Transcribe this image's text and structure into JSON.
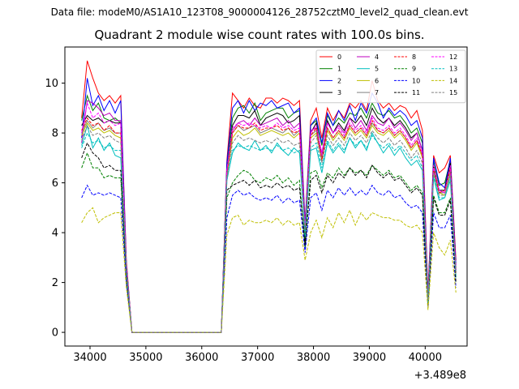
{
  "figure": {
    "suptitle": "Data file: modeM0/AS1A10_123T08_9000004126_28752cztM0_level2_quad_clean.evt",
    "title": "Quadrant 2 module wise count rates with 100.0s bins."
  },
  "chart_data": {
    "type": "line",
    "title": "Quadrant 2 module wise count rates with 100.0s bins.",
    "xlabel": "",
    "ylabel": "",
    "x_offset_label": "+3.489e8",
    "x_offset": 348900000,
    "xlim": [
      33550,
      40750
    ],
    "ylim": [
      -0.55,
      11.45
    ],
    "xticks": [
      34000,
      35000,
      36000,
      37000,
      38000,
      39000,
      40000
    ],
    "yticks": [
      0,
      2,
      4,
      6,
      8,
      10
    ],
    "grid": false,
    "legend_placement": "top-right",
    "legend_columns": 4,
    "x": [
      33850,
      33950,
      34050,
      34150,
      34250,
      34350,
      34450,
      34550,
      34650,
      34750,
      34850,
      34950,
      35050,
      35150,
      35250,
      35350,
      35450,
      35550,
      35650,
      35750,
      35850,
      35950,
      36050,
      36150,
      36250,
      36350,
      36450,
      36550,
      36650,
      36750,
      36850,
      36950,
      37050,
      37150,
      37250,
      37350,
      37450,
      37550,
      37650,
      37750,
      37850,
      37950,
      38050,
      38150,
      38250,
      38350,
      38450,
      38550,
      38650,
      38750,
      38850,
      38950,
      39050,
      39150,
      39250,
      39350,
      39450,
      39550,
      39650,
      39750,
      39850,
      39950,
      40050,
      40150,
      40250,
      40350,
      40450,
      40550
    ],
    "series": [
      {
        "name": "0",
        "color": "#ff0000",
        "dash": "solid",
        "values": [
          8.6,
          10.9,
          10.2,
          9.6,
          9.3,
          9.5,
          9.2,
          9.5,
          2.9,
          0,
          0,
          0,
          0,
          0,
          0,
          0,
          0,
          0,
          0,
          0,
          0,
          0,
          0,
          0,
          0,
          0,
          6.9,
          9.6,
          9.3,
          9.0,
          9.4,
          9.1,
          9.0,
          9.4,
          9.4,
          9.2,
          9.4,
          9.3,
          9.1,
          9.3,
          4.4,
          8.5,
          9.0,
          7.8,
          9.0,
          8.5,
          8.9,
          8.6,
          9.2,
          9.0,
          9.3,
          8.9,
          10.1,
          9.3,
          9.0,
          9.2,
          8.9,
          9.1,
          9.0,
          8.6,
          8.9,
          8.1,
          1.6,
          7.1,
          6.4,
          6.6,
          7.1,
          2.9
        ]
      },
      {
        "name": "1",
        "color": "#008000",
        "dash": "solid",
        "values": [
          8.5,
          9.5,
          8.9,
          9.2,
          8.6,
          8.5,
          8.6,
          8.4,
          2.7,
          0,
          0,
          0,
          0,
          0,
          0,
          0,
          0,
          0,
          0,
          0,
          0,
          0,
          0,
          0,
          0,
          0,
          6.7,
          8.6,
          9.0,
          9.1,
          8.8,
          9.2,
          8.5,
          8.8,
          8.9,
          9.0,
          9.0,
          8.6,
          8.8,
          8.9,
          4.2,
          8.3,
          8.5,
          7.5,
          8.7,
          8.3,
          8.6,
          8.4,
          8.8,
          8.7,
          9.0,
          8.6,
          9.2,
          8.8,
          8.7,
          8.9,
          8.6,
          8.7,
          8.4,
          8.0,
          8.2,
          7.6,
          1.4,
          6.9,
          5.9,
          6.0,
          6.9,
          2.6
        ]
      },
      {
        "name": "2",
        "color": "#0000ff",
        "dash": "solid",
        "values": [
          7.8,
          10.2,
          9.1,
          9.5,
          8.9,
          9.3,
          8.8,
          9.3,
          2.8,
          0,
          0,
          0,
          0,
          0,
          0,
          0,
          0,
          0,
          0,
          0,
          0,
          0,
          0,
          0,
          0,
          0,
          6.8,
          9.0,
          9.3,
          8.8,
          9.3,
          8.9,
          9.2,
          9.1,
          9.3,
          9.0,
          9.1,
          9.2,
          8.8,
          9.0,
          4.3,
          8.3,
          8.6,
          7.6,
          8.8,
          8.3,
          8.9,
          8.5,
          9.1,
          8.5,
          9.2,
          8.8,
          9.6,
          9.2,
          8.6,
          9.0,
          8.7,
          8.9,
          8.7,
          8.3,
          8.5,
          7.8,
          1.5,
          7.0,
          6.0,
          5.8,
          7.0,
          2.7
        ]
      },
      {
        "name": "3",
        "color": "#000000",
        "dash": "solid",
        "values": [
          8.3,
          8.7,
          8.5,
          8.6,
          8.4,
          8.5,
          8.4,
          8.4,
          2.7,
          0,
          0,
          0,
          0,
          0,
          0,
          0,
          0,
          0,
          0,
          0,
          0,
          0,
          0,
          0,
          0,
          0,
          6.4,
          8.3,
          8.7,
          8.7,
          8.6,
          8.9,
          8.3,
          8.6,
          8.7,
          8.8,
          8.7,
          8.4,
          8.5,
          8.7,
          3.4,
          8.0,
          8.4,
          7.0,
          8.5,
          8.0,
          8.4,
          8.1,
          8.6,
          8.4,
          8.7,
          8.3,
          9.0,
          8.6,
          8.4,
          8.6,
          8.3,
          8.5,
          8.2,
          7.8,
          8.0,
          7.3,
          1.3,
          6.7,
          5.7,
          5.7,
          6.8,
          2.5
        ]
      },
      {
        "name": "4",
        "color": "#bf00bf",
        "dash": "solid",
        "values": [
          7.6,
          9.3,
          9.2,
          9.0,
          8.7,
          8.8,
          8.5,
          8.5,
          2.6,
          0,
          0,
          0,
          0,
          0,
          0,
          0,
          0,
          0,
          0,
          0,
          0,
          0,
          0,
          0,
          0,
          0,
          6.5,
          8.1,
          8.4,
          8.5,
          8.3,
          8.6,
          8.3,
          8.4,
          8.5,
          8.6,
          8.3,
          8.5,
          8.2,
          8.4,
          4.1,
          8.1,
          8.2,
          7.2,
          8.4,
          8.0,
          8.3,
          8.0,
          8.6,
          8.2,
          8.5,
          8.1,
          8.7,
          8.4,
          8.3,
          8.6,
          8.2,
          8.4,
          8.1,
          7.7,
          8.0,
          7.3,
          1.4,
          6.6,
          5.7,
          5.6,
          6.6,
          2.4
        ]
      },
      {
        "name": "5",
        "color": "#00bfbf",
        "dash": "solid",
        "values": [
          7.5,
          8.3,
          7.4,
          7.8,
          7.3,
          7.6,
          7.1,
          7.0,
          2.4,
          0,
          0,
          0,
          0,
          0,
          0,
          0,
          0,
          0,
          0,
          0,
          0,
          0,
          0,
          0,
          0,
          0,
          6.1,
          7.2,
          7.6,
          7.4,
          7.3,
          7.7,
          7.3,
          7.5,
          7.2,
          7.6,
          7.3,
          7.1,
          7.4,
          7.2,
          3.8,
          7.3,
          7.4,
          6.4,
          7.6,
          7.2,
          7.5,
          7.2,
          7.8,
          7.4,
          7.7,
          7.3,
          8.0,
          7.6,
          7.2,
          7.5,
          7.1,
          7.4,
          7.0,
          6.7,
          6.9,
          6.5,
          1.2,
          6.2,
          5.3,
          5.4,
          6.1,
          2.2
        ]
      },
      {
        "name": "6",
        "color": "#bfbf00",
        "dash": "solid",
        "values": [
          7.9,
          8.4,
          8.1,
          8.2,
          8.0,
          8.1,
          7.9,
          7.8,
          2.6,
          0,
          0,
          0,
          0,
          0,
          0,
          0,
          0,
          0,
          0,
          0,
          0,
          0,
          0,
          0,
          0,
          0,
          6.3,
          7.8,
          8.1,
          7.9,
          8.0,
          8.2,
          7.9,
          8.0,
          8.1,
          8.0,
          7.9,
          8.0,
          7.8,
          8.0,
          4.0,
          7.8,
          8.0,
          6.9,
          8.1,
          7.7,
          8.0,
          7.7,
          8.2,
          7.9,
          8.1,
          7.8,
          8.3,
          8.0,
          7.9,
          8.1,
          7.8,
          8.0,
          7.7,
          7.3,
          7.6,
          7.0,
          1.3,
          6.4,
          5.6,
          5.5,
          6.4,
          2.4
        ]
      },
      {
        "name": "7",
        "color": "#808080",
        "dash": "solid",
        "values": [
          8.0,
          8.5,
          8.2,
          8.4,
          8.1,
          8.2,
          8.0,
          8.0,
          2.6,
          0,
          0,
          0,
          0,
          0,
          0,
          0,
          0,
          0,
          0,
          0,
          0,
          0,
          0,
          0,
          0,
          0,
          6.4,
          8.0,
          8.3,
          8.1,
          8.2,
          8.3,
          8.0,
          8.1,
          8.2,
          8.1,
          8.0,
          8.2,
          7.9,
          8.1,
          4.1,
          7.9,
          8.1,
          7.0,
          8.2,
          7.8,
          8.1,
          7.8,
          8.3,
          8.0,
          8.2,
          7.9,
          8.4,
          8.1,
          8.0,
          8.2,
          7.9,
          8.1,
          7.8,
          7.4,
          7.7,
          7.1,
          1.3,
          6.5,
          5.6,
          5.6,
          6.5,
          2.4
        ]
      },
      {
        "name": "8",
        "color": "#ff0000",
        "dash": "dashed",
        "values": [
          8.1,
          8.6,
          8.3,
          8.4,
          8.1,
          8.3,
          8.0,
          8.0,
          2.6,
          0,
          0,
          0,
          0,
          0,
          0,
          0,
          0,
          0,
          0,
          0,
          0,
          0,
          0,
          0,
          0,
          0,
          6.4,
          8.0,
          8.3,
          8.2,
          8.2,
          8.4,
          8.1,
          8.2,
          8.2,
          8.3,
          8.1,
          8.2,
          8.0,
          8.1,
          4.0,
          7.9,
          8.2,
          6.9,
          8.2,
          7.8,
          8.1,
          7.8,
          8.3,
          8.0,
          8.2,
          7.9,
          8.5,
          8.1,
          8.0,
          8.2,
          7.9,
          8.1,
          7.8,
          7.4,
          7.7,
          7.1,
          1.3,
          6.6,
          5.6,
          5.7,
          6.6,
          2.4
        ]
      },
      {
        "name": "9",
        "color": "#008000",
        "dash": "dashed",
        "values": [
          6.6,
          7.2,
          6.6,
          6.6,
          6.2,
          6.3,
          6.2,
          6.2,
          2.2,
          0,
          0,
          0,
          0,
          0,
          0,
          0,
          0,
          0,
          0,
          0,
          0,
          0,
          0,
          0,
          0,
          0,
          5.4,
          6.0,
          6.3,
          6.5,
          6.4,
          6.1,
          6.0,
          6.2,
          6.1,
          6.3,
          6.0,
          6.2,
          5.9,
          6.1,
          3.4,
          6.4,
          6.5,
          5.8,
          6.4,
          6.2,
          6.6,
          6.3,
          6.6,
          6.4,
          6.5,
          6.3,
          6.7,
          6.5,
          6.3,
          6.5,
          6.2,
          6.3,
          6.0,
          5.7,
          5.9,
          5.6,
          1.1,
          5.5,
          4.8,
          4.8,
          5.4,
          2.0
        ]
      },
      {
        "name": "10",
        "color": "#0000ff",
        "dash": "dashed",
        "values": [
          5.4,
          5.9,
          5.5,
          5.6,
          5.5,
          5.6,
          5.5,
          5.4,
          2.0,
          0,
          0,
          0,
          0,
          0,
          0,
          0,
          0,
          0,
          0,
          0,
          0,
          0,
          0,
          0,
          0,
          0,
          4.6,
          5.5,
          5.7,
          5.5,
          5.6,
          5.4,
          5.3,
          5.4,
          5.3,
          5.5,
          5.2,
          5.4,
          5.2,
          5.3,
          3.2,
          5.4,
          5.6,
          4.9,
          5.7,
          5.4,
          5.8,
          5.5,
          5.8,
          5.5,
          5.7,
          5.5,
          5.9,
          5.6,
          5.5,
          5.7,
          5.4,
          5.5,
          5.2,
          5.0,
          5.1,
          4.8,
          1.0,
          4.8,
          4.2,
          4.2,
          4.7,
          1.8
        ]
      },
      {
        "name": "11",
        "color": "#000000",
        "dash": "dashed",
        "values": [
          7.0,
          7.6,
          7.2,
          7.0,
          6.6,
          6.7,
          6.5,
          6.5,
          2.3,
          0,
          0,
          0,
          0,
          0,
          0,
          0,
          0,
          0,
          0,
          0,
          0,
          0,
          0,
          0,
          0,
          0,
          5.7,
          5.9,
          6.0,
          6.1,
          5.9,
          6.1,
          5.8,
          5.9,
          5.8,
          6.0,
          5.8,
          5.9,
          5.7,
          5.8,
          3.5,
          6.1,
          6.3,
          5.6,
          6.3,
          6.0,
          6.4,
          6.2,
          6.6,
          6.3,
          6.5,
          6.2,
          6.7,
          6.4,
          6.2,
          6.4,
          6.1,
          6.2,
          5.9,
          5.6,
          5.8,
          5.5,
          1.1,
          5.4,
          4.7,
          4.7,
          5.3,
          2.0
        ]
      },
      {
        "name": "12",
        "color": "#ff00ff",
        "dash": "dashed",
        "values": [
          8.0,
          9.2,
          8.6,
          8.8,
          8.4,
          8.5,
          8.3,
          8.4,
          2.7,
          0,
          0,
          0,
          0,
          0,
          0,
          0,
          0,
          0,
          0,
          0,
          0,
          0,
          0,
          0,
          0,
          0,
          6.5,
          8.2,
          8.4,
          8.3,
          8.4,
          8.3,
          8.2,
          8.3,
          8.2,
          8.4,
          8.2,
          8.3,
          8.1,
          8.2,
          4.1,
          8.0,
          8.3,
          7.1,
          8.4,
          8.0,
          8.2,
          7.9,
          8.4,
          8.1,
          8.3,
          8.0,
          8.6,
          8.2,
          8.1,
          8.3,
          8.0,
          8.2,
          7.9,
          7.5,
          7.8,
          7.2,
          1.4,
          6.7,
          5.7,
          5.6,
          6.7,
          2.5
        ]
      },
      {
        "name": "13",
        "color": "#00bfbf",
        "dash": "dashed",
        "values": [
          7.4,
          8.0,
          7.6,
          7.7,
          7.4,
          7.5,
          7.3,
          7.3,
          2.5,
          0,
          0,
          0,
          0,
          0,
          0,
          0,
          0,
          0,
          0,
          0,
          0,
          0,
          0,
          0,
          0,
          0,
          6.1,
          7.3,
          7.5,
          7.4,
          7.5,
          7.4,
          7.3,
          7.4,
          7.3,
          7.5,
          7.3,
          7.4,
          7.2,
          7.3,
          3.9,
          7.4,
          7.6,
          6.6,
          7.7,
          7.3,
          7.6,
          7.3,
          7.8,
          7.5,
          7.7,
          7.4,
          7.9,
          7.6,
          7.4,
          7.6,
          7.3,
          7.5,
          7.2,
          6.9,
          7.1,
          6.6,
          1.2,
          6.3,
          5.4,
          5.4,
          6.2,
          2.3
        ]
      },
      {
        "name": "14",
        "color": "#bfbf00",
        "dash": "dashed",
        "values": [
          4.4,
          4.8,
          5.0,
          4.4,
          4.6,
          4.7,
          4.8,
          4.8,
          1.8,
          0,
          0,
          0,
          0,
          0,
          0,
          0,
          0,
          0,
          0,
          0,
          0,
          0,
          0,
          0,
          0,
          0,
          3.9,
          4.6,
          4.7,
          4.3,
          4.5,
          4.4,
          4.4,
          4.5,
          4.4,
          4.6,
          4.3,
          4.5,
          4.3,
          4.4,
          2.9,
          4.0,
          4.5,
          3.8,
          4.6,
          4.2,
          4.8,
          4.4,
          4.9,
          4.3,
          4.8,
          4.5,
          4.8,
          4.7,
          4.6,
          4.6,
          4.5,
          4.5,
          4.3,
          4.2,
          4.3,
          4.0,
          0.9,
          4.0,
          3.4,
          3.1,
          3.7,
          1.6
        ]
      },
      {
        "name": "15",
        "color": "#808080",
        "dash": "dashed",
        "values": [
          7.7,
          8.3,
          7.9,
          8.0,
          7.8,
          7.9,
          7.7,
          7.6,
          2.5,
          0,
          0,
          0,
          0,
          0,
          0,
          0,
          0,
          0,
          0,
          0,
          0,
          0,
          0,
          0,
          0,
          0,
          6.2,
          7.6,
          7.9,
          7.7,
          7.8,
          7.7,
          7.6,
          7.7,
          7.6,
          7.8,
          7.6,
          7.7,
          7.5,
          7.6,
          4.0,
          7.6,
          7.9,
          6.8,
          7.9,
          7.5,
          7.8,
          7.5,
          8.0,
          7.7,
          7.9,
          7.6,
          8.1,
          7.8,
          7.6,
          7.8,
          7.5,
          7.7,
          7.4,
          7.0,
          7.3,
          6.8,
          1.3,
          6.4,
          5.5,
          5.5,
          6.3,
          2.3
        ]
      }
    ]
  }
}
